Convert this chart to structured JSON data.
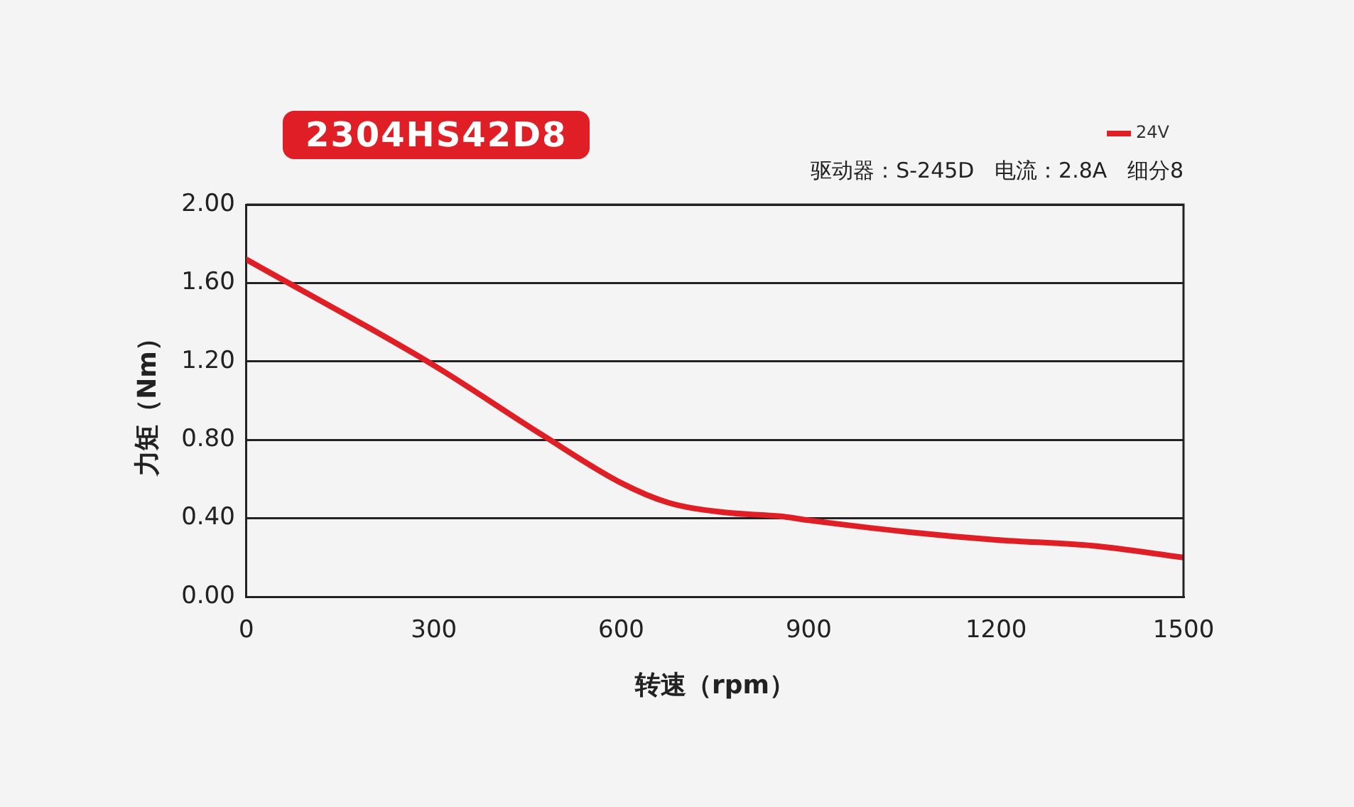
{
  "chart_data": {
    "type": "line",
    "title": "2304HS42D8",
    "subtitle": "驱动器：S-245D   电流：2.8A   细分8",
    "xlabel": "转速（rpm）",
    "ylabel": "力矩（Nm）",
    "x": [
      0,
      300,
      476,
      600,
      675,
      765,
      855,
      900,
      1060,
      1200,
      1355,
      1500
    ],
    "series": [
      {
        "name": "24V",
        "color": "#e01e25",
        "values": [
          1.72,
          1.18,
          0.82,
          0.58,
          0.48,
          0.43,
          0.41,
          0.39,
          0.33,
          0.29,
          0.26,
          0.2
        ]
      }
    ],
    "xlim": [
      0,
      1500
    ],
    "xticks": [
      0,
      300,
      600,
      900,
      1200,
      1500
    ],
    "ylim": [
      0,
      2
    ],
    "yticks": [
      {
        "value": 0,
        "label": "0.00"
      },
      {
        "value": 0.4,
        "label": "0.40"
      },
      {
        "value": 0.8,
        "label": "0.80"
      },
      {
        "value": 1.2,
        "label": "1.20"
      },
      {
        "value": 1.6,
        "label": "1.60"
      },
      {
        "value": 2,
        "label": "2.00"
      }
    ],
    "grid": "y",
    "legend": "top right",
    "marker": "none",
    "line_style": "solid"
  }
}
